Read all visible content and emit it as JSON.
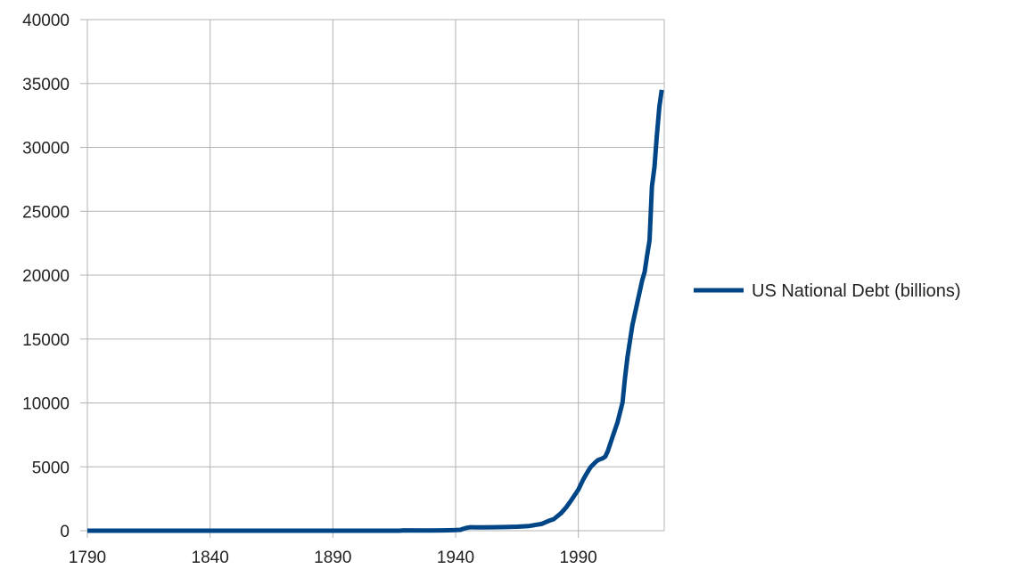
{
  "chart_data": {
    "type": "line",
    "title": "",
    "xlabel": "",
    "ylabel": "",
    "xlim": [
      1790,
      2025
    ],
    "ylim": [
      0,
      40000
    ],
    "x_ticks": [
      1790,
      1840,
      1890,
      1940,
      1990
    ],
    "y_ticks": [
      0,
      5000,
      10000,
      15000,
      20000,
      25000,
      30000,
      35000,
      40000
    ],
    "grid": true,
    "legend": "right",
    "colors": {
      "series": "#004586",
      "grid": "#b3b3b3",
      "axis": "#b3b3b3"
    },
    "series": [
      {
        "name": "US National Debt (billions)",
        "x": [
          1790,
          1800,
          1810,
          1820,
          1830,
          1835,
          1840,
          1850,
          1860,
          1870,
          1880,
          1890,
          1900,
          1910,
          1917,
          1919,
          1925,
          1930,
          1935,
          1940,
          1942,
          1943,
          1944,
          1946,
          1950,
          1955,
          1960,
          1965,
          1970,
          1975,
          1978,
          1980,
          1983,
          1985,
          1987,
          1990,
          1992,
          1993,
          1995,
          1997,
          1998,
          2000,
          2001,
          2002,
          2004,
          2006,
          2008,
          2009,
          2010,
          2012,
          2014,
          2016,
          2017,
          2018,
          2019,
          2020,
          2021,
          2022,
          2023,
          2024
        ],
        "values": [
          0,
          0,
          0,
          0,
          0,
          0,
          0,
          0,
          0,
          2,
          2,
          1,
          1,
          1,
          3,
          27,
          21,
          16,
          29,
          51,
          72,
          137,
          201,
          269,
          257,
          273,
          286,
          317,
          371,
          533,
          771,
          908,
          1377,
          1817,
          2350,
          3206,
          4001,
          4351,
          4974,
          5369,
          5526,
          5674,
          5807,
          6228,
          7379,
          8507,
          10025,
          11910,
          13562,
          16066,
          17824,
          19573,
          20245,
          21516,
          22719,
          26945,
          28429,
          30928,
          33167,
          34500
        ]
      }
    ]
  }
}
